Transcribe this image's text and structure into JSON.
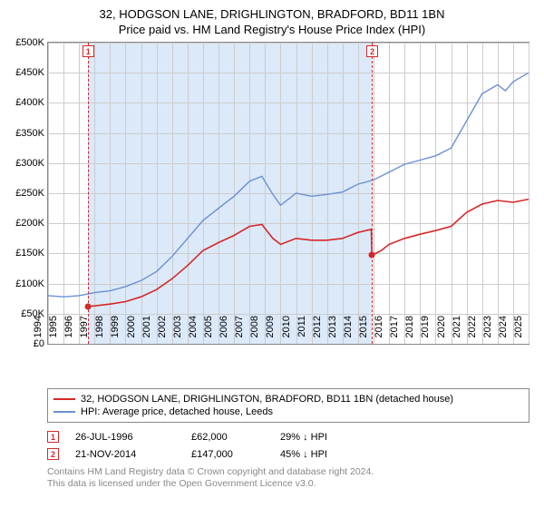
{
  "title": {
    "line1": "32, HODGSON LANE, DRIGHLINGTON, BRADFORD, BD11 1BN",
    "line2": "Price paid vs. HM Land Registry's House Price Index (HPI)"
  },
  "chart": {
    "type": "line",
    "background_color": "#ffffff",
    "shade_color": "#dbe9f9",
    "grid_color": "#cccccc",
    "axis_color": "#888888",
    "font_axis_size": 11,
    "x": {
      "min": 1994,
      "max": 2025,
      "ticks": [
        1994,
        1995,
        1996,
        1997,
        1998,
        1999,
        2000,
        2001,
        2002,
        2003,
        2004,
        2005,
        2006,
        2007,
        2008,
        2009,
        2010,
        2011,
        2012,
        2013,
        2014,
        2015,
        2016,
        2017,
        2018,
        2019,
        2020,
        2021,
        2022,
        2023,
        2024,
        2025
      ]
    },
    "y": {
      "min": 0,
      "max": 500000,
      "tick_step": 50000,
      "currency": "£",
      "suffix": "K",
      "ticks": [
        "£0",
        "£50K",
        "£100K",
        "£150K",
        "£200K",
        "£250K",
        "£300K",
        "£350K",
        "£400K",
        "£450K",
        "£500K"
      ]
    },
    "shade_ranges": [
      {
        "from": 1996.56,
        "to": 2014.89
      }
    ],
    "event_markers": [
      {
        "index": "1",
        "x": 1996.56,
        "y": 62000
      },
      {
        "index": "2",
        "x": 2014.89,
        "y": 147000
      }
    ],
    "series": [
      {
        "name": "32, HODGSON LANE, DRIGHLINGTON, BRADFORD, BD11 1BN (detached house)",
        "color": "#d62728",
        "line_width": 1.6,
        "data": [
          [
            1996.56,
            62000
          ],
          [
            1997,
            63000
          ],
          [
            1998,
            66000
          ],
          [
            1999,
            70000
          ],
          [
            2000,
            78000
          ],
          [
            2001,
            90000
          ],
          [
            2002,
            108000
          ],
          [
            2003,
            130000
          ],
          [
            2004,
            155000
          ],
          [
            2005,
            168000
          ],
          [
            2006,
            180000
          ],
          [
            2007,
            195000
          ],
          [
            2007.8,
            198000
          ],
          [
            2008.5,
            175000
          ],
          [
            2009,
            165000
          ],
          [
            2010,
            175000
          ],
          [
            2011,
            172000
          ],
          [
            2012,
            172000
          ],
          [
            2013,
            175000
          ],
          [
            2014,
            185000
          ],
          [
            2014.85,
            190000
          ],
          [
            2014.89,
            147000
          ],
          [
            2015.5,
            155000
          ],
          [
            2016,
            165000
          ],
          [
            2017,
            175000
          ],
          [
            2018,
            182000
          ],
          [
            2019,
            188000
          ],
          [
            2020,
            195000
          ],
          [
            2021,
            218000
          ],
          [
            2022,
            232000
          ],
          [
            2023,
            238000
          ],
          [
            2024,
            235000
          ],
          [
            2025,
            240000
          ]
        ]
      },
      {
        "name": "HPI: Average price, detached house, Leeds",
        "color": "#6b8fd4",
        "line_width": 1.4,
        "data": [
          [
            1994,
            80000
          ],
          [
            1995,
            78000
          ],
          [
            1996,
            80000
          ],
          [
            1997,
            85000
          ],
          [
            1998,
            88000
          ],
          [
            1999,
            95000
          ],
          [
            2000,
            105000
          ],
          [
            2001,
            120000
          ],
          [
            2002,
            145000
          ],
          [
            2003,
            175000
          ],
          [
            2004,
            205000
          ],
          [
            2005,
            225000
          ],
          [
            2006,
            245000
          ],
          [
            2007,
            270000
          ],
          [
            2007.8,
            278000
          ],
          [
            2008.5,
            248000
          ],
          [
            2009,
            230000
          ],
          [
            2010,
            250000
          ],
          [
            2011,
            245000
          ],
          [
            2012,
            248000
          ],
          [
            2013,
            252000
          ],
          [
            2014,
            265000
          ],
          [
            2015,
            272000
          ],
          [
            2016,
            285000
          ],
          [
            2017,
            298000
          ],
          [
            2018,
            305000
          ],
          [
            2019,
            312000
          ],
          [
            2020,
            325000
          ],
          [
            2021,
            370000
          ],
          [
            2022,
            415000
          ],
          [
            2023,
            430000
          ],
          [
            2023.5,
            420000
          ],
          [
            2024,
            435000
          ],
          [
            2025,
            450000
          ]
        ]
      }
    ]
  },
  "legend": {
    "items": [
      {
        "color": "#d62728",
        "label": "32, HODGSON LANE, DRIGHLINGTON, BRADFORD, BD11 1BN (detached house)"
      },
      {
        "color": "#6b8fd4",
        "label": "HPI: Average price, detached house, Leeds"
      }
    ]
  },
  "datapoints": [
    {
      "index": "1",
      "date": "26-JUL-1996",
      "price": "£62,000",
      "pct": "29% ↓ HPI"
    },
    {
      "index": "2",
      "date": "21-NOV-2014",
      "price": "£147,000",
      "pct": "45% ↓ HPI"
    }
  ],
  "footer": {
    "line1": "Contains HM Land Registry data © Crown copyright and database right 2024.",
    "line2": "This data is licensed under the Open Government Licence v3.0."
  },
  "colors": {
    "event_marker_border": "#d62728",
    "footer_text": "#888888"
  }
}
